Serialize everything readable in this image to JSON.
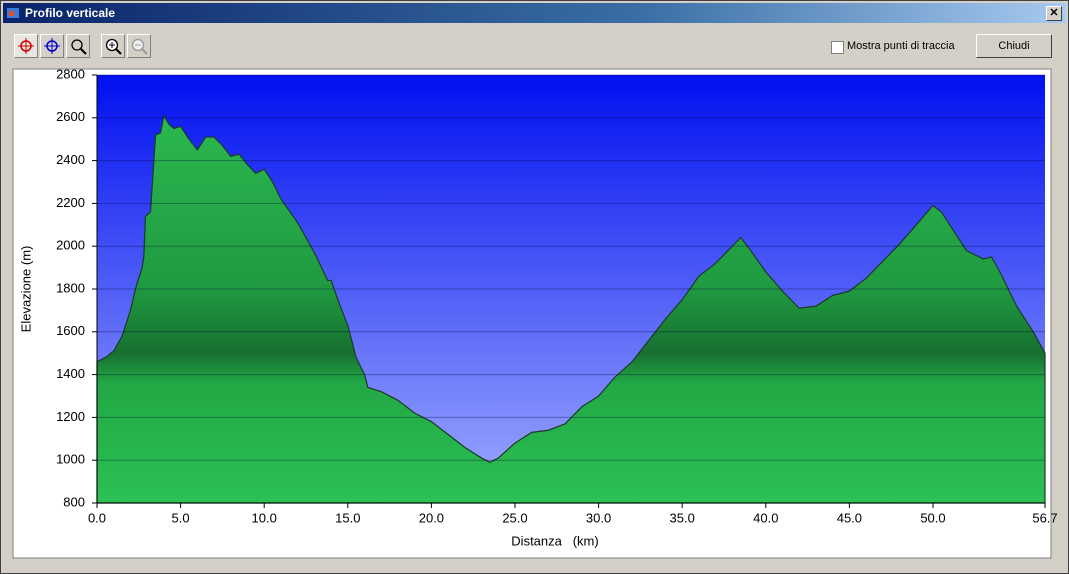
{
  "window_title": "Profilo verticale",
  "checkbox_label": "Mostra punti di traccia",
  "button": "Chiudi",
  "chart_data": {
    "type": "area",
    "ylabel": "Elevazione (m)",
    "xlabel": "Distanza   (km)",
    "color": "#22a845",
    "background_top": "#0010f0",
    "background_bottom": "#a0acff",
    "grid": true,
    "xlim": [
      0,
      56.7
    ],
    "ylim": [
      800,
      2800
    ],
    "xticks": [
      {
        "value": 0,
        "label": "0.0"
      },
      {
        "value": 5,
        "label": "5.0"
      },
      {
        "value": 10,
        "label": "10.0"
      },
      {
        "value": 15,
        "label": "15.0"
      },
      {
        "value": 20,
        "label": "20.0"
      },
      {
        "value": 25,
        "label": "25.0"
      },
      {
        "value": 30,
        "label": "30.0"
      },
      {
        "value": 35,
        "label": "35.0"
      },
      {
        "value": 40,
        "label": "40.0"
      },
      {
        "value": 45,
        "label": "45.0"
      },
      {
        "value": 50,
        "label": "50.0"
      },
      56.7
    ],
    "yticks": [
      800,
      1000,
      1200,
      1400,
      1600,
      1800,
      2000,
      2200,
      2400,
      2600,
      2800
    ],
    "x": [
      0,
      0.5,
      1,
      1.5,
      2,
      2.3,
      2.7,
      2.8,
      2.9,
      3.2,
      3.5,
      3.8,
      4.0,
      4.3,
      4.6,
      5.0,
      5.5,
      6.0,
      6.5,
      7.0,
      7.5,
      8.0,
      8.5,
      9.0,
      9.5,
      10.0,
      10.5,
      11.0,
      12.0,
      13.0,
      13.8,
      14.0,
      14.5,
      15.0,
      15.5,
      16.0,
      16.2,
      17.0,
      18.0,
      19.0,
      20.0,
      21.0,
      22.0,
      23.0,
      23.5,
      24.0,
      25.0,
      26.0,
      27.0,
      28.0,
      29.0,
      30.0,
      31.0,
      32.0,
      33.0,
      34.0,
      35.0,
      36.0,
      37.0,
      38.0,
      38.5,
      39.0,
      40.0,
      41.0,
      42.0,
      43.0,
      44.0,
      45.0,
      46.0,
      47.0,
      48.0,
      49.0,
      50.0,
      50.5,
      51.0,
      52.0,
      53.0,
      53.5,
      54.0,
      55.0,
      56.0,
      56.7
    ],
    "values": [
      1460,
      1480,
      1510,
      1580,
      1700,
      1800,
      1900,
      1950,
      2140,
      2160,
      2520,
      2530,
      2610,
      2570,
      2550,
      2560,
      2500,
      2450,
      2510,
      2510,
      2470,
      2420,
      2430,
      2380,
      2340,
      2360,
      2300,
      2220,
      2110,
      1970,
      1840,
      1840,
      1730,
      1630,
      1480,
      1400,
      1340,
      1320,
      1280,
      1220,
      1180,
      1120,
      1060,
      1010,
      990,
      1010,
      1080,
      1130,
      1140,
      1170,
      1250,
      1300,
      1390,
      1460,
      1560,
      1660,
      1750,
      1860,
      1920,
      2000,
      2040,
      1990,
      1880,
      1790,
      1710,
      1720,
      1770,
      1790,
      1850,
      1930,
      2010,
      2100,
      2190,
      2160,
      2100,
      1980,
      1940,
      1950,
      1880,
      1720,
      1600,
      1500
    ]
  }
}
